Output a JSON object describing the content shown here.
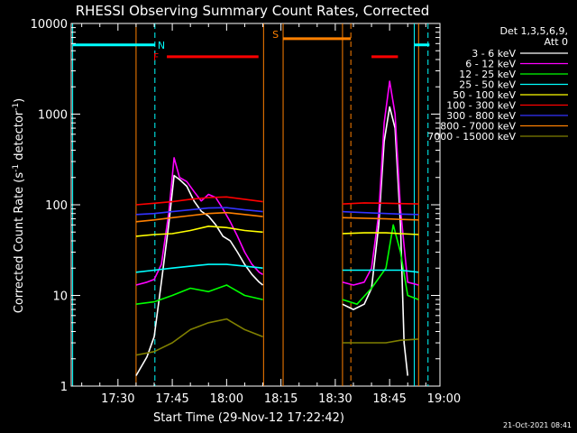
{
  "chart_data": {
    "type": "line",
    "title": "RHESSI Observing Summary Count Rates, Corrected",
    "xlabel": "Start Time (29-Nov-12 17:22:42)",
    "ylabel_main": "Corrected Count Rate (s",
    "ylabel_sup1": "-1",
    "ylabel_mid": " detector",
    "ylabel_sup2": "-1",
    "ylabel_end": ")",
    "yscale": "log",
    "ylim": [
      1,
      10000
    ],
    "xlim_minutes": [
      17.1,
      118.9
    ],
    "x_origin": "17:22:42",
    "xticks": [
      {
        "label": "17:30",
        "min": 30
      },
      {
        "label": "17:45",
        "min": 45
      },
      {
        "label": "18:00",
        "min": 60
      },
      {
        "label": "18:15",
        "min": 75
      },
      {
        "label": "18:30",
        "min": 90
      },
      {
        "label": "18:45",
        "min": 105
      },
      {
        "label": "19:00",
        "min": 120
      }
    ],
    "yticks": [
      {
        "label": "1",
        "v": 1
      },
      {
        "label": "10",
        "v": 10
      },
      {
        "label": "100",
        "v": 100
      },
      {
        "label": "1000",
        "v": 1000
      },
      {
        "label": "10000",
        "v": 10000
      }
    ],
    "legend_header": [
      "Det 1,3,5,6,9,",
      "Att 0"
    ],
    "series": [
      {
        "name": "3 - 6 keV",
        "color": "#ffffff",
        "points": [
          [
            35,
            1.3
          ],
          [
            38,
            2.1
          ],
          [
            40,
            3.5
          ],
          [
            42,
            14
          ],
          [
            44,
            60
          ],
          [
            45.5,
            210
          ],
          [
            47,
            190
          ],
          [
            49,
            160
          ],
          [
            51,
            110
          ],
          [
            53,
            85
          ],
          [
            55,
            75
          ],
          [
            57,
            60
          ],
          [
            59,
            45
          ],
          [
            61,
            40
          ],
          [
            63,
            30
          ],
          [
            65,
            22
          ],
          [
            67,
            17
          ],
          [
            69,
            14
          ],
          [
            70,
            13
          ],
          [
            null,
            null
          ],
          [
            92,
            8
          ],
          [
            95,
            7
          ],
          [
            98,
            8
          ],
          [
            100,
            12
          ],
          [
            102,
            60
          ],
          [
            103.5,
            500
          ],
          [
            105,
            1200
          ],
          [
            106.5,
            700
          ],
          [
            108,
            60
          ],
          [
            109,
            3
          ],
          [
            110,
            1.3
          ]
        ]
      },
      {
        "name": "6 - 12 keV",
        "color": "#ff00ff",
        "points": [
          [
            35,
            13
          ],
          [
            38,
            14
          ],
          [
            40,
            15
          ],
          [
            42,
            22
          ],
          [
            44,
            80
          ],
          [
            45.5,
            330
          ],
          [
            47,
            200
          ],
          [
            49,
            180
          ],
          [
            51,
            140
          ],
          [
            53,
            110
          ],
          [
            55,
            130
          ],
          [
            57,
            120
          ],
          [
            59,
            90
          ],
          [
            61,
            65
          ],
          [
            63,
            45
          ],
          [
            65,
            30
          ],
          [
            67,
            22
          ],
          [
            69,
            18
          ],
          [
            70,
            17
          ],
          [
            null,
            null
          ],
          [
            92,
            14
          ],
          [
            95,
            13
          ],
          [
            98,
            14
          ],
          [
            100,
            20
          ],
          [
            102,
            80
          ],
          [
            103.5,
            800
          ],
          [
            105,
            2300
          ],
          [
            106.5,
            1000
          ],
          [
            108,
            90
          ],
          [
            110,
            14
          ],
          [
            113,
            13
          ]
        ]
      },
      {
        "name": "12 - 25 keV",
        "color": "#00ff00",
        "points": [
          [
            35,
            8
          ],
          [
            40,
            8.5
          ],
          [
            45,
            10
          ],
          [
            50,
            12
          ],
          [
            55,
            11
          ],
          [
            60,
            13
          ],
          [
            65,
            10
          ],
          [
            70,
            9
          ],
          [
            null,
            null
          ],
          [
            92,
            9
          ],
          [
            96,
            8
          ],
          [
            100,
            12
          ],
          [
            104,
            20
          ],
          [
            106,
            60
          ],
          [
            108,
            30
          ],
          [
            110,
            10
          ],
          [
            113,
            9
          ]
        ]
      },
      {
        "name": "25 - 50 keV",
        "color": "#00ffff",
        "points": [
          [
            35,
            18
          ],
          [
            40,
            19
          ],
          [
            45,
            20
          ],
          [
            50,
            21
          ],
          [
            55,
            22
          ],
          [
            60,
            22
          ],
          [
            65,
            21
          ],
          [
            70,
            20
          ],
          [
            null,
            null
          ],
          [
            92,
            19
          ],
          [
            98,
            19
          ],
          [
            104,
            19
          ],
          [
            108,
            19
          ],
          [
            113,
            18
          ]
        ]
      },
      {
        "name": "50 - 100 keV",
        "color": "#ffff00",
        "points": [
          [
            35,
            45
          ],
          [
            40,
            47
          ],
          [
            45,
            48
          ],
          [
            50,
            52
          ],
          [
            55,
            58
          ],
          [
            60,
            56
          ],
          [
            65,
            52
          ],
          [
            70,
            50
          ],
          [
            null,
            null
          ],
          [
            92,
            48
          ],
          [
            98,
            49
          ],
          [
            104,
            49
          ],
          [
            108,
            48
          ],
          [
            113,
            47
          ]
        ]
      },
      {
        "name": "100 - 300 keV",
        "color": "#ff0000",
        "points": [
          [
            35,
            100
          ],
          [
            40,
            104
          ],
          [
            45,
            108
          ],
          [
            50,
            115
          ],
          [
            55,
            120
          ],
          [
            60,
            122
          ],
          [
            65,
            115
          ],
          [
            70,
            108
          ],
          [
            null,
            null
          ],
          [
            92,
            102
          ],
          [
            98,
            105
          ],
          [
            104,
            104
          ],
          [
            108,
            103
          ],
          [
            113,
            102
          ]
        ]
      },
      {
        "name": "300 - 800 keV",
        "color": "#3333ff",
        "points": [
          [
            35,
            78
          ],
          [
            40,
            80
          ],
          [
            45,
            84
          ],
          [
            50,
            88
          ],
          [
            55,
            92
          ],
          [
            60,
            93
          ],
          [
            65,
            88
          ],
          [
            70,
            84
          ],
          [
            null,
            null
          ],
          [
            92,
            84
          ],
          [
            98,
            82
          ],
          [
            104,
            80
          ],
          [
            108,
            79
          ],
          [
            113,
            78
          ]
        ]
      },
      {
        "name": "800 - 7000 keV",
        "color": "#ff8000",
        "points": [
          [
            35,
            65
          ],
          [
            40,
            68
          ],
          [
            45,
            72
          ],
          [
            50,
            76
          ],
          [
            55,
            80
          ],
          [
            60,
            82
          ],
          [
            65,
            78
          ],
          [
            70,
            74
          ],
          [
            null,
            null
          ],
          [
            92,
            72
          ],
          [
            98,
            71
          ],
          [
            104,
            70
          ],
          [
            108,
            69
          ],
          [
            113,
            68
          ]
        ]
      },
      {
        "name": "7000 - 15000 keV",
        "color": "#808000",
        "points": [
          [
            35,
            2.2
          ],
          [
            40,
            2.4
          ],
          [
            45,
            3
          ],
          [
            50,
            4.2
          ],
          [
            55,
            5
          ],
          [
            60,
            5.5
          ],
          [
            65,
            4.2
          ],
          [
            70,
            3.5
          ],
          [
            null,
            null
          ],
          [
            92,
            3
          ],
          [
            98,
            3
          ],
          [
            104,
            3
          ],
          [
            108,
            3.2
          ],
          [
            113,
            3.3
          ]
        ]
      }
    ],
    "vlines": [
      {
        "min": 17.5,
        "color": "#00ffff",
        "style": "solid"
      },
      {
        "min": 40.2,
        "color": "#00ffff",
        "style": "dashed"
      },
      {
        "min": 75.6,
        "color": "#ff8000",
        "style": "solid"
      },
      {
        "min": 94.3,
        "color": "#ff8000",
        "style": "dashed"
      },
      {
        "min": 111.8,
        "color": "#00ffff",
        "style": "solid"
      },
      {
        "min": 115.6,
        "color": "#00ffff",
        "style": "dashed"
      },
      {
        "min": 35.0,
        "color": "#ff8000",
        "style": "solid"
      },
      {
        "min": 70.2,
        "color": "#ff8000",
        "style": "solid"
      },
      {
        "min": 92.0,
        "color": "#ff8000",
        "style": "solid"
      },
      {
        "min": 113.0,
        "color": "#ff8000",
        "style": "solid"
      }
    ],
    "flag_bars": [
      {
        "label": "N",
        "color": "#00ffff",
        "from": 17.5,
        "to": 40.2,
        "v": 5800,
        "label_min": 42,
        "label_v": 5800
      },
      {
        "label": "",
        "color": "#00ffff",
        "from": 111.8,
        "to": 116,
        "v": 5800,
        "label_min": null,
        "label_v": null
      },
      {
        "label": "S",
        "color": "#ff8000",
        "from": 75.6,
        "to": 94.3,
        "v": 6800,
        "label_min": 73.5,
        "label_v": 7600
      },
      {
        "label": "F",
        "color": "#ff0000",
        "from": 43.5,
        "to": 68.8,
        "v": 4300,
        "label_min": 40.5,
        "label_v": 4300
      },
      {
        "label": "",
        "color": "#ff0000",
        "from": 100,
        "to": 107.3,
        "v": 4300,
        "label_min": null,
        "label_v": null
      }
    ],
    "timestamp": "21-Oct-2021 08:41"
  }
}
